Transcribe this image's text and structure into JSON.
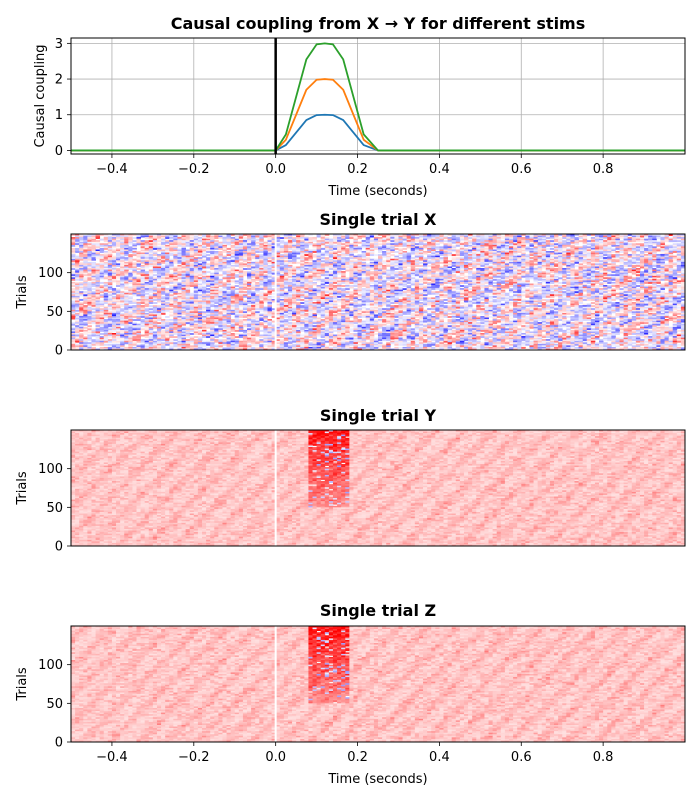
{
  "chart_data": [
    {
      "type": "line",
      "title": "Causal coupling from X → Y for different stims",
      "xlabel": "Time (seconds)",
      "ylabel": "Causal coupling",
      "xlim": [
        -0.5,
        1.0
      ],
      "ylim": [
        -0.1,
        3.15
      ],
      "xticks": [
        -0.4,
        -0.2,
        0.0,
        0.2,
        0.4,
        0.6,
        0.8
      ],
      "xtick_labels": [
        "−0.4",
        "−0.2",
        "0.0",
        "0.2",
        "0.4",
        "0.6",
        "0.8"
      ],
      "yticks": [
        0,
        1,
        2,
        3
      ],
      "ytick_labels": [
        "0",
        "1",
        "2",
        "3"
      ],
      "grid": true,
      "vline_x": 0.0,
      "x": [
        -0.5,
        0.0,
        0.025,
        0.05,
        0.075,
        0.1,
        0.12,
        0.14,
        0.165,
        0.19,
        0.215,
        0.25,
        1.0
      ],
      "series": [
        {
          "color": "#1f77b4",
          "values": [
            0,
            0,
            0.15,
            0.5,
            0.85,
            0.99,
            1.0,
            0.99,
            0.85,
            0.5,
            0.15,
            0,
            0
          ]
        },
        {
          "color": "#ff7f0e",
          "values": [
            0,
            0,
            0.3,
            1.0,
            1.7,
            1.98,
            2.0,
            1.98,
            1.7,
            1.0,
            0.3,
            0,
            0
          ]
        },
        {
          "color": "#2ca02c",
          "values": [
            0,
            0,
            0.45,
            1.5,
            2.55,
            2.97,
            3.0,
            2.97,
            2.55,
            1.5,
            0.45,
            0,
            0
          ]
        }
      ]
    },
    {
      "type": "heatmap",
      "title": "Single trial X",
      "ylabel": "Trials",
      "xlim": [
        -0.5,
        1.0
      ],
      "ylim": [
        0,
        150
      ],
      "yticks": [
        0,
        50,
        100
      ],
      "ytick_labels": [
        "0",
        "50",
        "100"
      ],
      "colormap": "bwr",
      "vline_x": 0.0,
      "burst": null
    },
    {
      "type": "heatmap",
      "title": "Single trial Y",
      "ylabel": "Trials",
      "xlim": [
        -0.5,
        1.0
      ],
      "ylim": [
        0,
        150
      ],
      "yticks": [
        0,
        50,
        100
      ],
      "ytick_labels": [
        "0",
        "50",
        "100"
      ],
      "colormap": "bwr",
      "vline_x": 0.0,
      "burst": {
        "x_start": 0.08,
        "x_end": 0.18,
        "y_start": 50,
        "y_end": 150
      }
    },
    {
      "type": "heatmap",
      "title": "Single trial Z",
      "xlabel": "Time (seconds)",
      "ylabel": "Trials",
      "xlim": [
        -0.5,
        1.0
      ],
      "ylim": [
        0,
        150
      ],
      "xticks": [
        -0.4,
        -0.2,
        0.0,
        0.2,
        0.4,
        0.6,
        0.8
      ],
      "xtick_labels": [
        "−0.4",
        "−0.2",
        "0.0",
        "0.2",
        "0.4",
        "0.6",
        "0.8"
      ],
      "yticks": [
        0,
        50,
        100
      ],
      "ytick_labels": [
        "0",
        "50",
        "100"
      ],
      "colormap": "bwr",
      "vline_x": 0.0,
      "burst": {
        "x_start": 0.08,
        "x_end": 0.18,
        "y_start": 50,
        "y_end": 150
      }
    }
  ]
}
